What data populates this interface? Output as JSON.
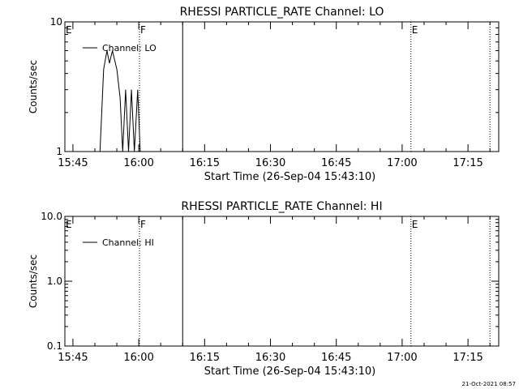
{
  "footer_text": "21-Oct-2021 08:57",
  "chart_data": [
    {
      "type": "line",
      "title": "RHESSI PARTICLE_RATE Channel: LO",
      "xlabel": "Start Time (26-Sep-04 15:43:10)",
      "ylabel": "Counts/sec",
      "yscale": "log",
      "ylim": [
        1,
        10
      ],
      "yticks": [
        "1",
        "10"
      ],
      "xlim": [
        "15:43:10",
        "17:22:00"
      ],
      "xticks": [
        "15:45",
        "16:00",
        "16:15",
        "16:30",
        "16:45",
        "17:00",
        "17:15"
      ],
      "legend": {
        "placement": "top-left",
        "entries": [
          "Channel: LO"
        ]
      },
      "markers": [
        {
          "label": "E",
          "time": "15:43:10",
          "style": "none"
        },
        {
          "label": "F",
          "time": "16:00:10",
          "style": "dotted"
        },
        {
          "label": "",
          "time": "16:10:00",
          "style": "solid"
        },
        {
          "label": "E",
          "time": "17:02:00",
          "style": "dotted"
        },
        {
          "label": "",
          "time": "17:20:00",
          "style": "dotted"
        }
      ],
      "series": [
        {
          "name": "Channel: LO",
          "points": [
            [
              "15:51:10",
              1.0
            ],
            [
              "15:52:00",
              4.3
            ],
            [
              "15:52:45",
              6.0
            ],
            [
              "15:53:20",
              4.8
            ],
            [
              "15:54:00",
              6.0
            ],
            [
              "15:55:00",
              4.3
            ],
            [
              "15:55:45",
              2.6
            ],
            [
              "15:56:20",
              1.0
            ],
            [
              "15:57:00",
              3.0
            ],
            [
              "15:57:40",
              1.0
            ],
            [
              "15:58:20",
              3.0
            ],
            [
              "15:59:00",
              1.0
            ],
            [
              "15:59:45",
              3.0
            ],
            [
              "16:00:20",
              1.0
            ]
          ]
        }
      ]
    },
    {
      "type": "line",
      "title": "RHESSI PARTICLE_RATE Channel: HI",
      "xlabel": "Start Time (26-Sep-04 15:43:10)",
      "ylabel": "Counts/sec",
      "yscale": "log",
      "ylim": [
        0.1,
        10
      ],
      "yticks": [
        "0.1",
        "1.0",
        "10.0"
      ],
      "xlim": [
        "15:43:10",
        "17:22:00"
      ],
      "xticks": [
        "15:45",
        "16:00",
        "16:15",
        "16:30",
        "16:45",
        "17:00",
        "17:15"
      ],
      "legend": {
        "placement": "top-left",
        "entries": [
          "Channel: HI"
        ]
      },
      "markers": [
        {
          "label": "E",
          "time": "15:43:10",
          "style": "none"
        },
        {
          "label": "F",
          "time": "16:00:10",
          "style": "dotted"
        },
        {
          "label": "",
          "time": "16:10:00",
          "style": "solid"
        },
        {
          "label": "E",
          "time": "17:02:00",
          "style": "dotted"
        },
        {
          "label": "",
          "time": "17:20:00",
          "style": "dotted"
        }
      ],
      "series": [
        {
          "name": "Channel: HI",
          "points": []
        }
      ]
    }
  ]
}
